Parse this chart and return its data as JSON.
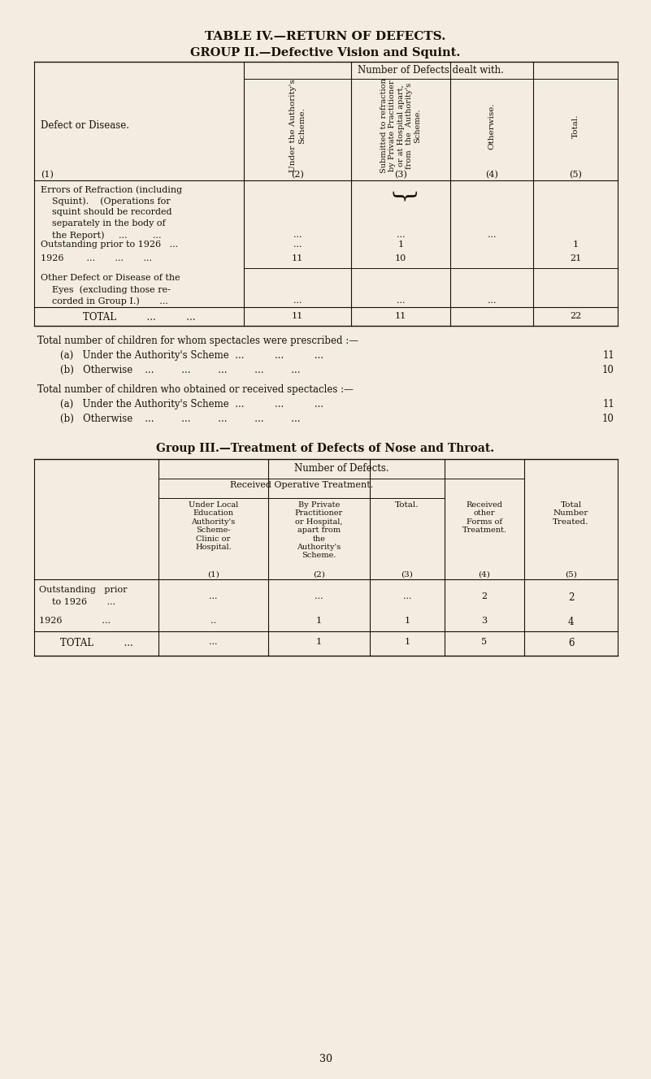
{
  "bg_color": "#f2ede0",
  "text_color": "#1a1008",
  "title1": "TABLE IV.—RETURN OF DEFECTS.",
  "title2": "GROUP II.—Defective Vision and Squint.",
  "page_number": "30",
  "fig_w": 8.01,
  "fig_h": 13.28,
  "dpi": 100
}
